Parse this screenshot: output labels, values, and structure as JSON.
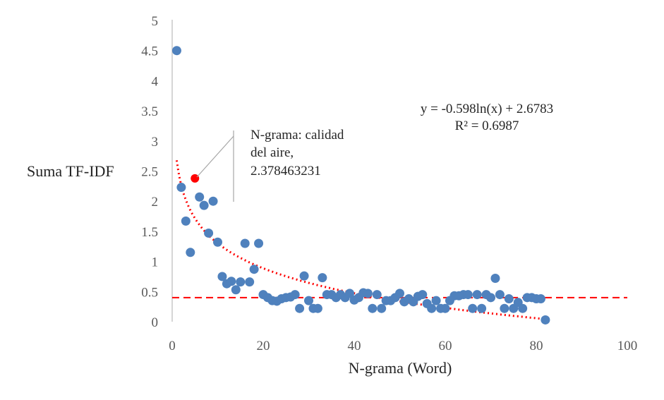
{
  "chart_data": {
    "type": "scatter",
    "title": "",
    "xlabel": "N-grama (Word)",
    "ylabel": "Suma TF-IDF",
    "xlim": [
      0,
      100
    ],
    "ylim": [
      0,
      5
    ],
    "xticks": [
      "0",
      "20",
      "40",
      "60",
      "80",
      "100"
    ],
    "yticks": [
      "0",
      "0.5",
      "1",
      "1.5",
      "2",
      "2.5",
      "3",
      "3.5",
      "4",
      "4.5",
      "5"
    ],
    "xtick_values": [
      0,
      20,
      40,
      60,
      80,
      100
    ],
    "ytick_values": [
      0,
      0.5,
      1,
      1.5,
      2,
      2.5,
      3,
      3.5,
      4,
      4.5,
      5
    ],
    "series": [
      {
        "name": "N-grama",
        "color": "#4f81bd",
        "x": [
          1,
          2,
          3,
          4,
          5,
          6,
          7,
          8,
          9,
          10,
          11,
          12,
          13,
          14,
          15,
          16,
          17,
          18,
          19,
          20,
          21,
          22,
          23,
          24,
          25,
          26,
          27,
          28,
          29,
          30,
          31,
          32,
          33,
          34,
          35,
          36,
          37,
          38,
          39,
          40,
          41,
          42,
          43,
          44,
          45,
          46,
          47,
          48,
          49,
          50,
          51,
          52,
          53,
          54,
          55,
          56,
          57,
          58,
          59,
          60,
          61,
          62,
          63,
          64,
          65,
          66,
          67,
          68,
          69,
          70,
          71,
          72,
          73,
          74,
          75,
          76,
          77,
          78,
          79,
          80,
          81,
          82
        ],
        "y": [
          4.5,
          2.23,
          1.67,
          1.15,
          2.38,
          2.07,
          1.93,
          1.47,
          2.0,
          1.32,
          0.75,
          0.63,
          0.67,
          0.53,
          0.66,
          1.3,
          0.66,
          0.87,
          1.3,
          0.45,
          0.4,
          0.35,
          0.34,
          0.38,
          0.4,
          0.41,
          0.45,
          0.22,
          0.76,
          0.35,
          0.22,
          0.22,
          0.73,
          0.45,
          0.45,
          0.4,
          0.45,
          0.4,
          0.47,
          0.36,
          0.4,
          0.48,
          0.47,
          0.22,
          0.45,
          0.22,
          0.35,
          0.35,
          0.4,
          0.47,
          0.33,
          0.38,
          0.33,
          0.42,
          0.45,
          0.3,
          0.22,
          0.35,
          0.22,
          0.22,
          0.35,
          0.43,
          0.43,
          0.45,
          0.45,
          0.22,
          0.45,
          0.22,
          0.45,
          0.4,
          0.72,
          0.45,
          0.22,
          0.38,
          0.22,
          0.32,
          0.22,
          0.4,
          0.4,
          0.38,
          0.38,
          0.03
        ]
      }
    ],
    "highlight": {
      "x": 5,
      "y": 2.378463231,
      "color": "#ff0000"
    },
    "trendline": {
      "type": "logarithmic",
      "a": -0.598,
      "b": 2.6783,
      "x_from": 1,
      "x_to": 82,
      "color": "#ff0000",
      "style": "dotted"
    },
    "reference_line": {
      "y": 0.4,
      "color": "#ff0000",
      "style": "dashed"
    },
    "annotation": {
      "line1": "N-grama:  calidad",
      "line2": "del aire,",
      "line3": "2.378463231"
    },
    "equation": {
      "line1": "y = -0.598ln(x)  + 2.6783",
      "line2": "R² = 0.6987"
    },
    "grid": false,
    "legend": "none"
  }
}
